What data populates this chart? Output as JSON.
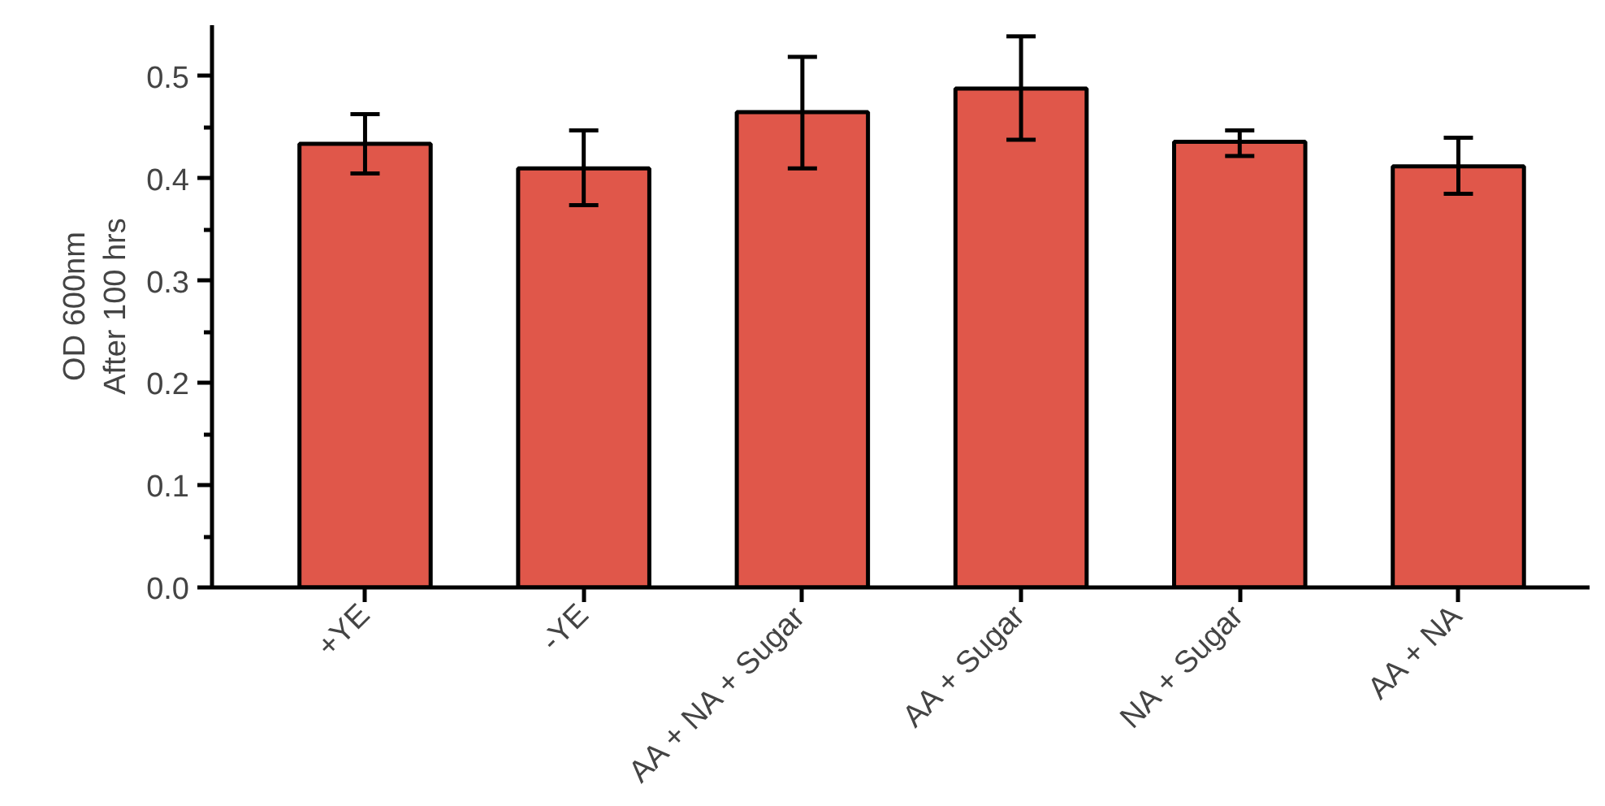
{
  "chart_data": {
    "type": "bar",
    "ylabel": "OD 600nm\nAfter 100 hrs",
    "categories": [
      "+YE",
      "-YE",
      "AA + NA + Sugar",
      "AA + Sugar",
      "NA + Sugar",
      "AA + NA"
    ],
    "values": [
      0.434,
      0.41,
      0.465,
      0.488,
      0.436,
      0.412
    ],
    "errors": [
      [
        0.405,
        0.463
      ],
      [
        0.374,
        0.447
      ],
      [
        0.41,
        0.519
      ],
      [
        0.438,
        0.539
      ],
      [
        0.422,
        0.447
      ],
      [
        0.385,
        0.44
      ]
    ],
    "color": "#e0574a",
    "ylim": [
      0,
      0.55
    ],
    "yticks": [
      {
        "value": 0.0,
        "label": "0.0"
      },
      {
        "value": 0.05,
        "label": null
      },
      {
        "value": 0.1,
        "label": "0.1"
      },
      {
        "value": 0.15,
        "label": null
      },
      {
        "value": 0.2,
        "label": "0.2"
      },
      {
        "value": 0.25,
        "label": null
      },
      {
        "value": 0.3,
        "label": "0.3"
      },
      {
        "value": 0.35,
        "label": null
      },
      {
        "value": 0.4,
        "label": "0.4"
      },
      {
        "value": 0.45,
        "label": null
      },
      {
        "value": 0.5,
        "label": "0.5"
      }
    ],
    "grid": false
  }
}
